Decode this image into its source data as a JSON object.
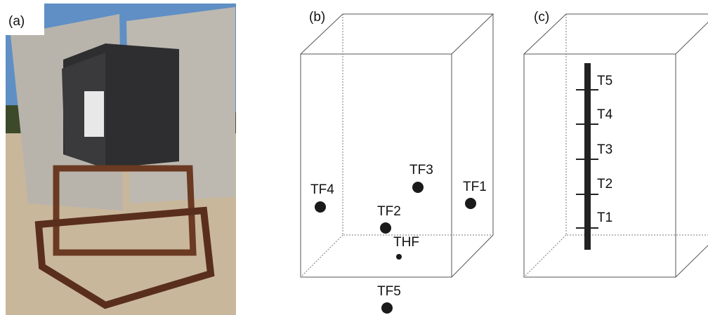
{
  "panels": [
    {
      "label": "(a)"
    },
    {
      "label": "(b)",
      "sensors": [
        "TF4",
        "TF3",
        "TF1",
        "TF2",
        "THF",
        "TF5"
      ]
    },
    {
      "label": "(c)",
      "sensors": [
        "T5",
        "T4",
        "T3",
        "T2",
        "T1"
      ]
    }
  ]
}
